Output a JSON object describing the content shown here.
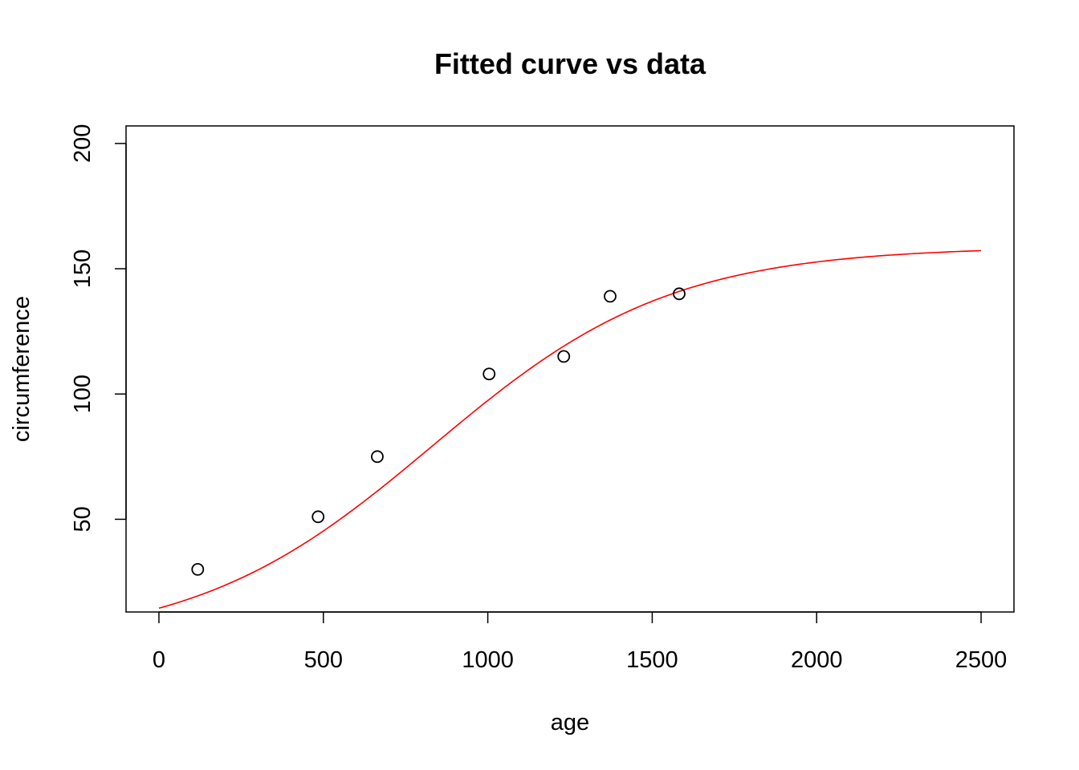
{
  "chart_data": {
    "type": "scatter",
    "title": "Fitted curve vs data",
    "xlabel": "age",
    "ylabel": "circumference",
    "xlim": [
      -100,
      2600
    ],
    "ylim": [
      13,
      207
    ],
    "xticks": [
      0,
      500,
      1000,
      1500,
      2000,
      2500
    ],
    "yticks": [
      50,
      100,
      150,
      200
    ],
    "grid": false,
    "points": {
      "x": [
        118,
        484,
        664,
        1004,
        1231,
        1372,
        1582
      ],
      "y": [
        30,
        51,
        75,
        108,
        115,
        139,
        140
      ],
      "marker": "open-circle",
      "color": "#000000"
    },
    "fitted_curve": {
      "model": "logistic",
      "asym": 158.8,
      "xmid": 832.7,
      "scal": 362.6,
      "x_range": [
        0,
        2500
      ],
      "color": "#ff0000"
    }
  }
}
